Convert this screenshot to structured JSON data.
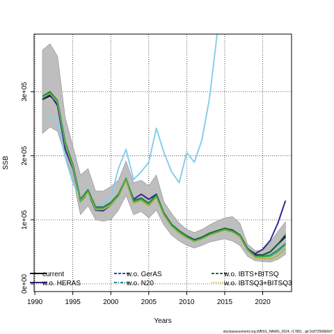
{
  "chart_data": {
    "type": "line",
    "xlabel": "Years",
    "ylabel": "SSB",
    "xlim": [
      1989.9,
      2023.8
    ],
    "ylim": [
      -12000,
      390000
    ],
    "grid": true,
    "legend_position": "bottom",
    "x_ticks": [
      1990,
      1995,
      2000,
      2005,
      2010,
      2015,
      2020
    ],
    "x_tick_labels": [
      "1990",
      "1995",
      "2000",
      "2005",
      "2010",
      "2015",
      "2020"
    ],
    "y_ticks": [
      0,
      100000,
      200000,
      300000
    ],
    "y_tick_labels": [
      "0e+00",
      "1e+05",
      "2e+05",
      "3e+05"
    ],
    "x": [
      1991,
      1992,
      1993,
      1994,
      1995,
      1996,
      1997,
      1998,
      1999,
      2000,
      2001,
      2002,
      2003,
      2004,
      2005,
      2006,
      2007,
      2008,
      2009,
      2010,
      2011,
      2012,
      2013,
      2014,
      2015,
      2016,
      2017,
      2018,
      2019,
      2020,
      2021,
      2022,
      2023
    ],
    "band": {
      "color": "#bebebe",
      "lower": [
        235000,
        245000,
        238000,
        200000,
        165000,
        108000,
        122000,
        100000,
        98000,
        100000,
        115000,
        138000,
        108000,
        113000,
        103000,
        115000,
        92000,
        76000,
        67000,
        60000,
        56000,
        60000,
        65000,
        68000,
        70000,
        67000,
        60000,
        43000,
        36000,
        35000,
        34000,
        38000,
        46000
      ],
      "upper": [
        365000,
        375000,
        355000,
        260000,
        215000,
        170000,
        180000,
        145000,
        145000,
        152000,
        162000,
        192000,
        158000,
        162000,
        153000,
        170000,
        128000,
        110000,
        95000,
        85000,
        80000,
        85000,
        92000,
        98000,
        103000,
        105000,
        95000,
        62000,
        52000,
        52000,
        65000,
        82000,
        97000
      ]
    },
    "series": [
      {
        "name": "current",
        "color": "#000000",
        "values": [
          288000,
          294000,
          283000,
          220000,
          185000,
          130000,
          145000,
          118000,
          118000,
          125000,
          138000,
          163000,
          128000,
          133000,
          125000,
          138000,
          110000,
          92000,
          82000,
          74000,
          68000,
          72000,
          78000,
          82000,
          86000,
          84000,
          76000,
          55000,
          45000,
          45000,
          50000,
          62000,
          74000
        ]
      },
      {
        "name": "w.o. HERAS",
        "color": "#2e2a8c",
        "values": [
          288000,
          296000,
          278000,
          210000,
          180000,
          128000,
          142000,
          115000,
          114000,
          123000,
          137000,
          163000,
          132000,
          140000,
          132000,
          140000,
          110000,
          92000,
          82000,
          75000,
          69000,
          73000,
          79000,
          83000,
          86000,
          83000,
          74000,
          55000,
          47000,
          54000,
          68000,
          95000,
          130000
        ]
      },
      {
        "name": "w.o. GerAS",
        "color": "#87ceeb",
        "values": [
          263000,
          262000,
          252000,
          198000,
          158000,
          133000,
          140000,
          122000,
          124000,
          135000,
          180000,
          210000,
          163000,
          175000,
          190000,
          243000,
          205000,
          175000,
          158000,
          205000,
          190000,
          225000,
          290000,
          390000,
          null,
          null,
          null,
          null,
          null,
          null,
          null,
          null,
          null
        ]
      },
      {
        "name": "w.o. N20",
        "color": "#1f8a8a",
        "values": [
          290000,
          298000,
          284000,
          220000,
          184000,
          130000,
          145000,
          118000,
          118000,
          125000,
          138000,
          163000,
          128000,
          132000,
          124000,
          137000,
          108000,
          91000,
          81000,
          73000,
          67000,
          71000,
          77000,
          81000,
          85000,
          82000,
          75000,
          54000,
          44000,
          43000,
          45000,
          53000,
          63000
        ]
      },
      {
        "name": "w.o. IBTS+BITSQ",
        "color": "#1a6b3c",
        "values": [
          293000,
          300000,
          286000,
          222000,
          186000,
          132000,
          147000,
          120000,
          120000,
          127000,
          140000,
          165000,
          130000,
          134000,
          126000,
          139000,
          111000,
          93000,
          83000,
          75000,
          69000,
          73000,
          79000,
          83000,
          87000,
          84000,
          76000,
          54000,
          44000,
          45000,
          50000,
          62000,
          77000
        ]
      },
      {
        "name": "w.o. IBTSQ3+BITSQ3",
        "color": "#b8b23a",
        "values": [
          291000,
          297000,
          283000,
          218000,
          182000,
          128000,
          143000,
          116000,
          116000,
          123000,
          136000,
          161000,
          126000,
          130000,
          122000,
          135000,
          107000,
          90000,
          79000,
          72000,
          66000,
          70000,
          76000,
          80000,
          84000,
          81000,
          73000,
          52000,
          41000,
          39000,
          39000,
          44000,
          55000
        ]
      },
      {
        "name": "",
        "color": "#4caf50",
        "values": [
          292000,
          298000,
          285000,
          220000,
          184000,
          130000,
          145000,
          118000,
          118000,
          125000,
          138000,
          164000,
          128000,
          132000,
          124000,
          137000,
          109000,
          91000,
          81000,
          73000,
          67000,
          71000,
          77000,
          81000,
          85000,
          82000,
          75000,
          54000,
          43000,
          42000,
          43000,
          50000,
          61000
        ]
      }
    ],
    "legend": [
      {
        "label": "current",
        "style": "solid",
        "color": "#000000"
      },
      {
        "label": "w.o. HERAS",
        "style": "solid",
        "color": "#2e2a8c"
      },
      {
        "label": "w.o. GerAS",
        "style": "dashed",
        "color": "#1f4fa8"
      },
      {
        "label": "w.o. N20",
        "style": "dotdash",
        "color": "#1f8a8a"
      },
      {
        "label": "w.o. IBTS+BITSQ",
        "style": "dashed",
        "color": "#1a6b3c"
      },
      {
        "label": "w.o. IBTSQ3+BITSQ3",
        "style": "dotted",
        "color": "#b8b23a"
      }
    ],
    "credit": "stockassessment.org,WBSS_HAWG_2024, r17851 , git:3c872568b0d7"
  }
}
